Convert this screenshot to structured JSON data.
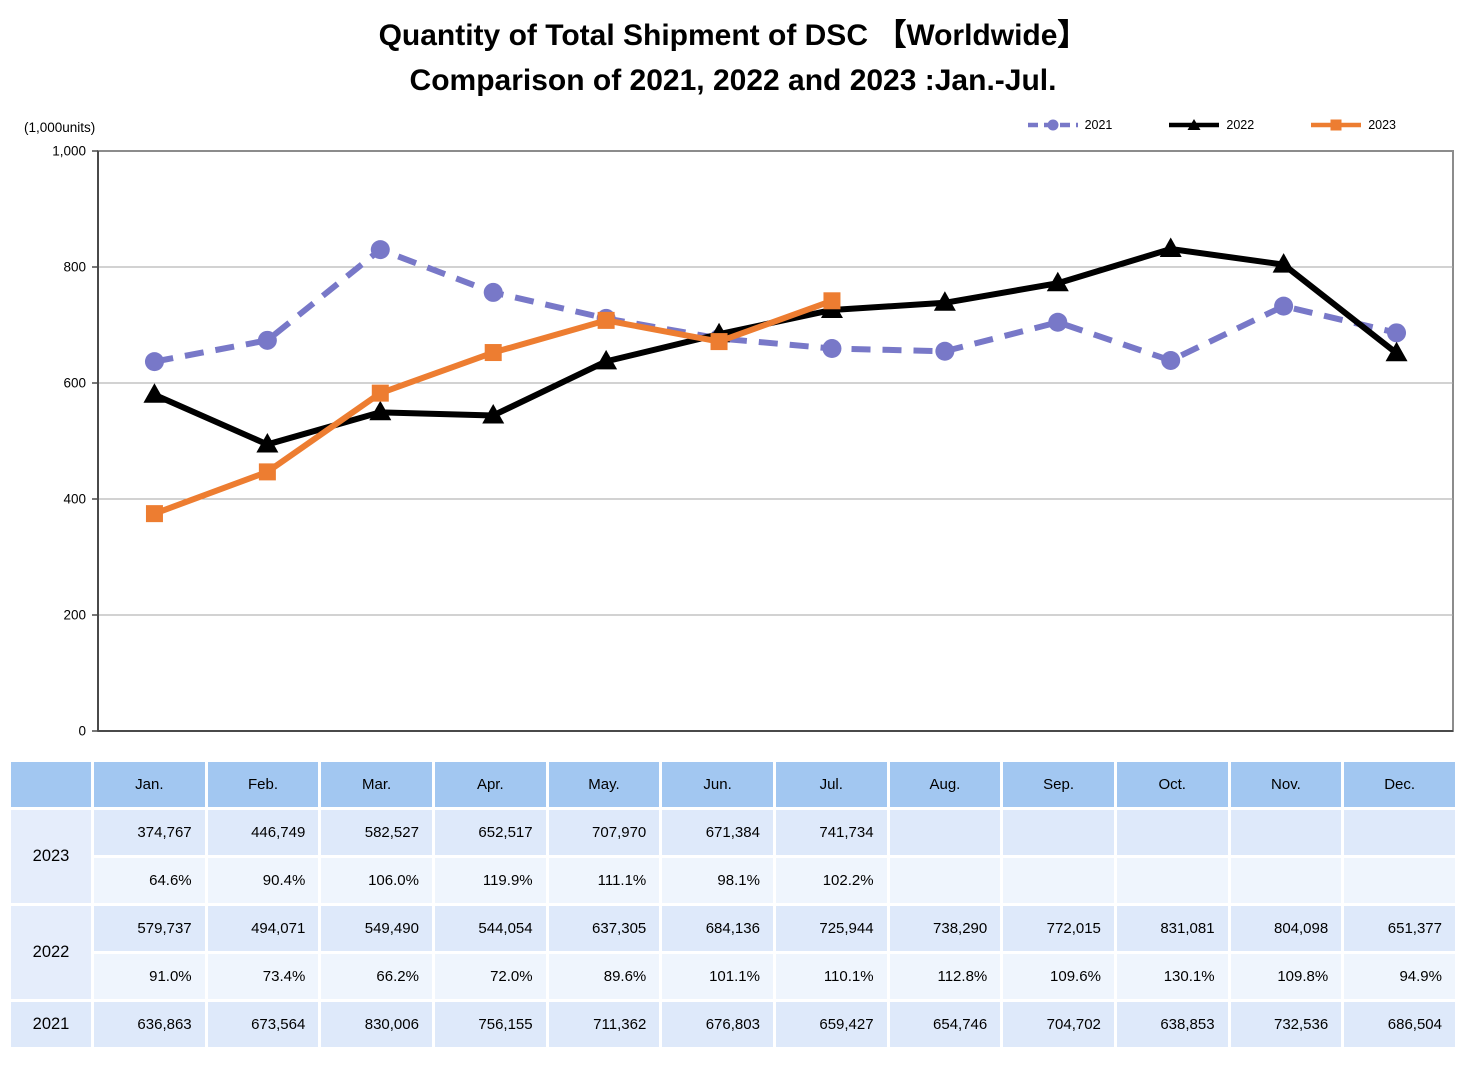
{
  "title": {
    "line1": "Quantity of Total Shipment of DSC 【Worldwide】",
    "line2": "Comparison of 2021, 2022 and 2023 :Jan.-Jul."
  },
  "unit_label": "(1,000units)",
  "legend": {
    "items": [
      {
        "label": "2021",
        "color": "#7878C8",
        "line_style": "dashed",
        "marker": "circle"
      },
      {
        "label": "2022",
        "color": "#000000",
        "line_style": "solid",
        "marker": "triangle"
      },
      {
        "label": "2023",
        "color": "#ED7D31",
        "line_style": "solid",
        "marker": "square"
      }
    ]
  },
  "chart_data": {
    "type": "line",
    "title": "Quantity of Total Shipment of DSC 【Worldwide】 Comparison of 2021, 2022 and 2023 :Jan.-Jul.",
    "unit": "1,000 units",
    "categories": [
      "Jan.",
      "Feb.",
      "Mar.",
      "Apr.",
      "May.",
      "Jun.",
      "Jul.",
      "Aug.",
      "Sep.",
      "Oct.",
      "Nov.",
      "Dec."
    ],
    "ylim": [
      0,
      1000
    ],
    "yticks": [
      0,
      200,
      400,
      600,
      800,
      1000
    ],
    "ytick_labels": [
      "0",
      "200",
      "400",
      "600",
      "800",
      "1,000"
    ],
    "grid": "horizontal",
    "legend_position": "top-right",
    "series": [
      {
        "name": "2021",
        "color": "#7878C8",
        "line_style": "dashed",
        "marker": "circle",
        "values": [
          636.863,
          673.564,
          830.006,
          756.155,
          711.362,
          676.803,
          659.427,
          654.746,
          704.702,
          638.853,
          732.536,
          686.504
        ]
      },
      {
        "name": "2022",
        "color": "#000000",
        "line_style": "solid",
        "marker": "triangle",
        "values": [
          579.737,
          494.071,
          549.49,
          544.054,
          637.305,
          684.136,
          725.944,
          738.29,
          772.015,
          831.081,
          804.098,
          651.377
        ]
      },
      {
        "name": "2023",
        "color": "#ED7D31",
        "line_style": "solid",
        "marker": "square",
        "values": [
          374.767,
          446.749,
          582.527,
          652.517,
          707.97,
          671.384,
          741.734,
          null,
          null,
          null,
          null,
          null
        ]
      }
    ]
  },
  "table": {
    "columns": [
      "",
      "Jan.",
      "Feb.",
      "Mar.",
      "Apr.",
      "May.",
      "Jun.",
      "Jul.",
      "Aug.",
      "Sep.",
      "Oct.",
      "Nov.",
      "Dec."
    ],
    "rows": [
      {
        "year": "2023",
        "values": [
          "374,767",
          "446,749",
          "582,527",
          "652,517",
          "707,970",
          "671,384",
          "741,734",
          "",
          "",
          "",
          "",
          ""
        ],
        "percents": [
          "64.6%",
          "90.4%",
          "106.0%",
          "119.9%",
          "111.1%",
          "98.1%",
          "102.2%",
          "",
          "",
          "",
          "",
          ""
        ]
      },
      {
        "year": "2022",
        "values": [
          "579,737",
          "494,071",
          "549,490",
          "544,054",
          "637,305",
          "684,136",
          "725,944",
          "738,290",
          "772,015",
          "831,081",
          "804,098",
          "651,377"
        ],
        "percents": [
          "91.0%",
          "73.4%",
          "66.2%",
          "72.0%",
          "89.6%",
          "101.1%",
          "110.1%",
          "112.8%",
          "109.6%",
          "130.1%",
          "109.8%",
          "94.9%"
        ]
      },
      {
        "year": "2021",
        "values": [
          "636,863",
          "673,564",
          "830,006",
          "756,155",
          "711,362",
          "676,803",
          "659,427",
          "654,746",
          "704,702",
          "638,853",
          "732,536",
          "686,504"
        ]
      }
    ]
  },
  "colors": {
    "header_bg": "#A2C7F1",
    "value_row_bg": "#DEE9FA",
    "percent_row_bg": "#EFF5FD",
    "year_cell_bg": "#E5EDFB",
    "grid_line": "#A6A6A6",
    "plot_border": "#8C8C8C",
    "axis_line": "#4A4A4A"
  }
}
